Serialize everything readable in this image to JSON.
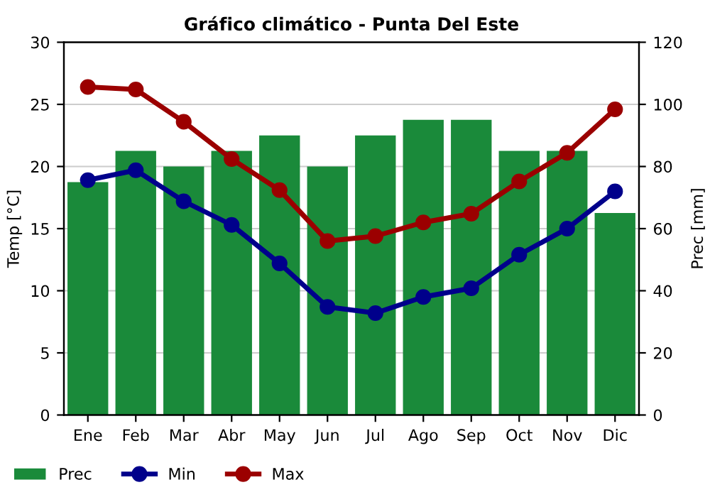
{
  "chart_data": {
    "type": "line",
    "title": "Gráfico climático - Punta Del Este",
    "ylabel": "Temp [°C]",
    "y2label": "Prec [mm]",
    "categories": [
      "Ene",
      "Feb",
      "Mar",
      "Abr",
      "May",
      "Jun",
      "Jul",
      "Ago",
      "Sep",
      "Oct",
      "Nov",
      "Dic"
    ],
    "series": [
      {
        "name": "Prec",
        "type": "bar",
        "axis": "y2",
        "color": "#1a8a3a",
        "values": [
          75,
          85,
          80,
          85,
          90,
          80,
          90,
          95,
          95,
          85,
          85,
          65
        ]
      },
      {
        "name": "Min",
        "color": "#00008b",
        "values": [
          18.9,
          19.7,
          17.2,
          15.3,
          12.2,
          8.7,
          8.2,
          9.5,
          10.2,
          12.9,
          15.0,
          18.0
        ]
      },
      {
        "name": "Max",
        "color": "#9b0000",
        "values": [
          26.4,
          26.2,
          23.6,
          20.6,
          18.1,
          14.0,
          14.4,
          15.5,
          16.2,
          18.8,
          21.1,
          24.6
        ]
      }
    ],
    "ylim": [
      0,
      30
    ],
    "yticks": [
      0,
      5,
      10,
      15,
      20,
      25,
      30
    ],
    "y2lim": [
      0,
      120
    ],
    "y2ticks": [
      0,
      20,
      40,
      60,
      80,
      100,
      120
    ],
    "grid": "y",
    "legend": "bottom left",
    "marker": "circle",
    "line_style": "solid"
  }
}
